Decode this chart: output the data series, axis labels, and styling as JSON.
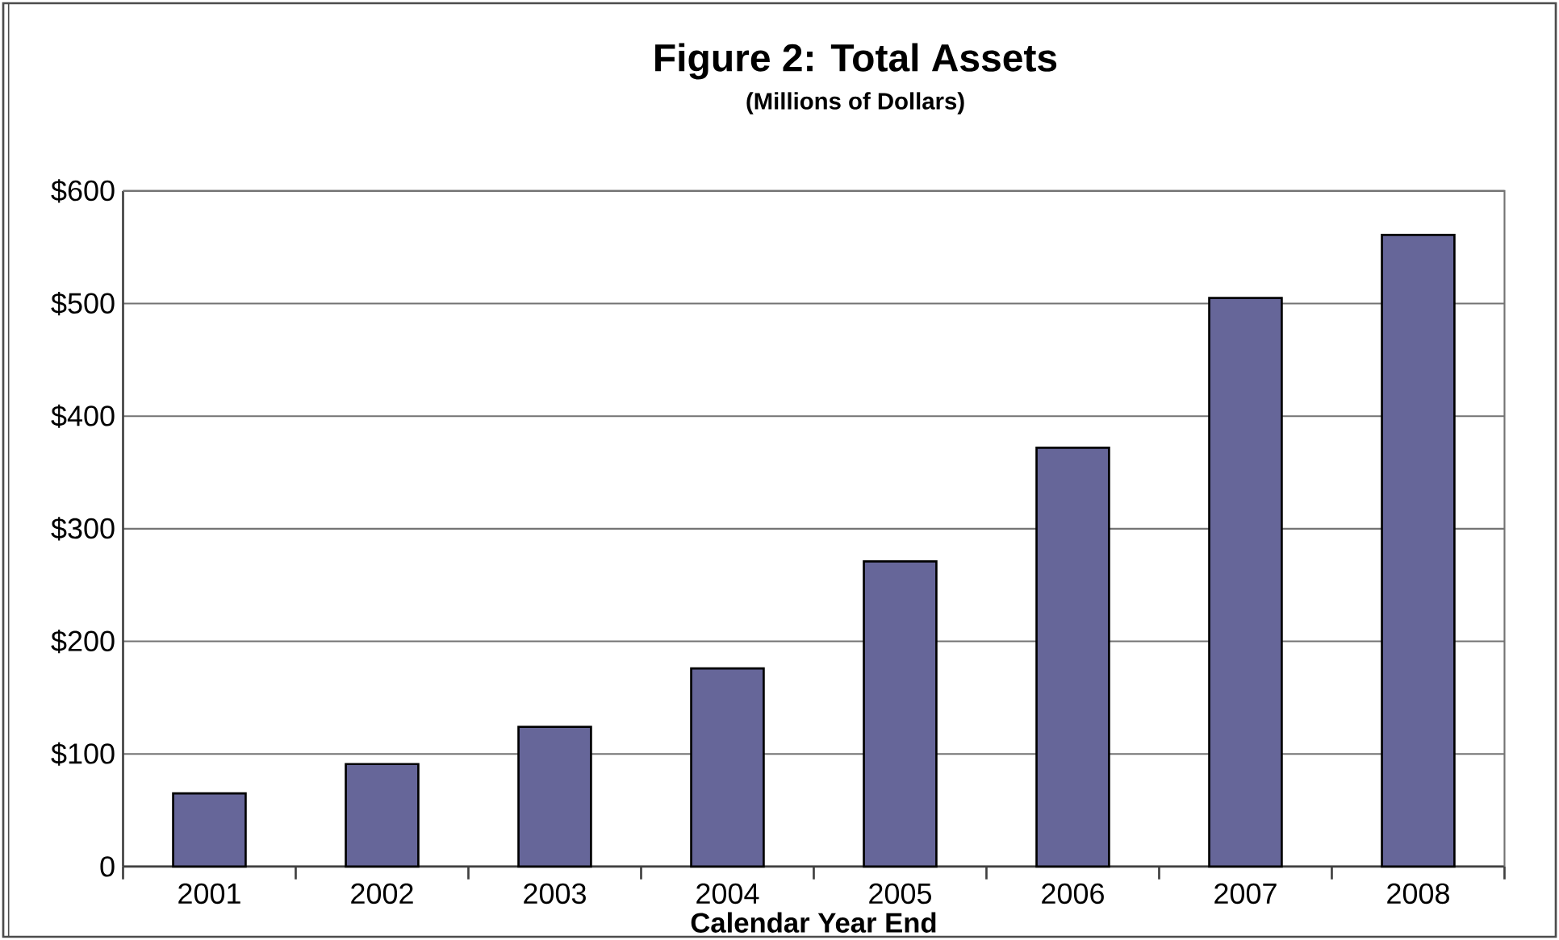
{
  "chart_data": {
    "type": "bar",
    "title": "Figure 2:  Total Assets",
    "subtitle": "(Millions of Dollars)",
    "xlabel": "Calendar Year End",
    "categories": [
      "2001",
      "2002",
      "2003",
      "2004",
      "2005",
      "2006",
      "2007",
      "2008"
    ],
    "values": [
      65,
      91,
      124,
      176,
      271,
      372,
      505,
      561
    ],
    "color": "#666699",
    "ylim": [
      0,
      600
    ],
    "yticks": [
      {
        "value": 0,
        "label": "0"
      },
      {
        "value": 100,
        "label": "$100"
      },
      {
        "value": 200,
        "label": "$200"
      },
      {
        "value": 300,
        "label": "$300"
      },
      {
        "value": 400,
        "label": "$400"
      },
      {
        "value": 500,
        "label": "$500"
      },
      {
        "value": 600,
        "label": "$600"
      }
    ],
    "grid": "y"
  }
}
